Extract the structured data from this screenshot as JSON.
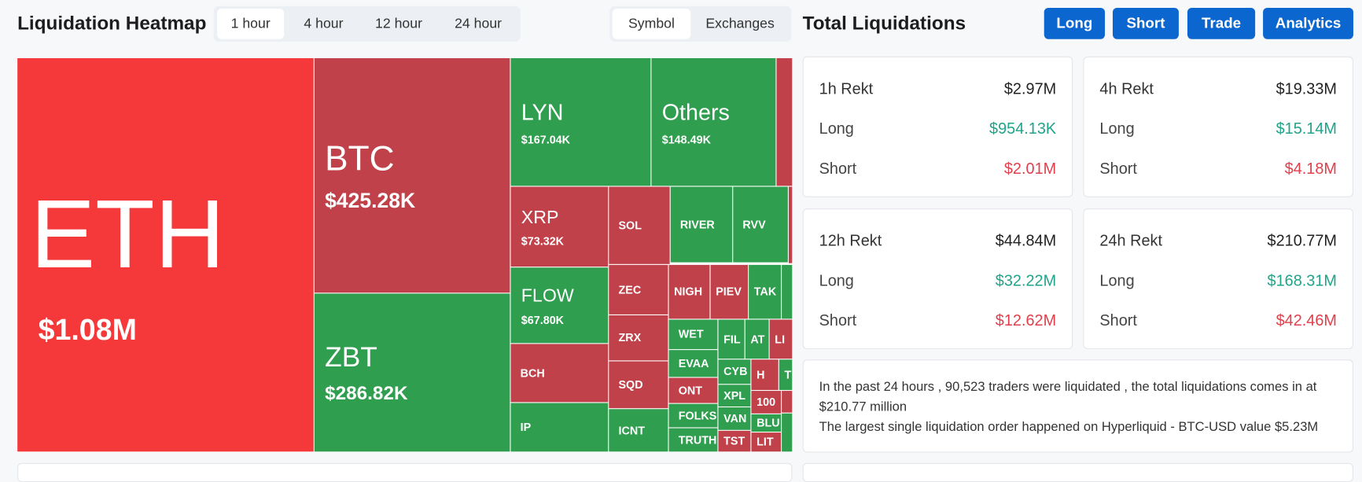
{
  "header": {
    "title": "Liquidation Heatmap",
    "time_tabs": [
      "1 hour",
      "4 hour",
      "12 hour",
      "24 hour"
    ],
    "view_tabs": [
      "Symbol",
      "Exchanges"
    ]
  },
  "heatmap": {
    "tiles": [
      {
        "label": "ETH",
        "value": "$1.08M",
        "color": "#f5393b"
      },
      {
        "label": "BTC",
        "value": "$425.28K",
        "color": "#c0414a"
      },
      {
        "label": "ZBT",
        "value": "$286.82K",
        "color": "#2f9e4e"
      },
      {
        "label": "LYN",
        "value": "$167.04K",
        "color": "#2f9e4e"
      },
      {
        "label": "Others",
        "value": "$148.49K",
        "color": "#2f9e4e"
      },
      {
        "label": "XRP",
        "value": "$73.32K",
        "color": "#c0414a"
      },
      {
        "label": "FLOW",
        "value": "$67.80K",
        "color": "#2f9e4e"
      },
      {
        "label": "BCH",
        "color": "#c0414a"
      },
      {
        "label": "IP",
        "color": "#2f9e4e"
      },
      {
        "label": "SOL",
        "color": "#c0414a"
      },
      {
        "label": "RIVER",
        "color": "#2f9e4e"
      },
      {
        "label": "RVV",
        "color": "#2f9e4e"
      },
      {
        "label": "ZEC",
        "color": "#c0414a"
      },
      {
        "label": "ZRX",
        "color": "#c0414a"
      },
      {
        "label": "SQD",
        "color": "#c0414a"
      },
      {
        "label": "ICNT",
        "color": "#2f9e4e"
      },
      {
        "label": "NIGH",
        "color": "#c0414a"
      },
      {
        "label": "PIEV",
        "color": "#c0414a"
      },
      {
        "label": "TAK",
        "color": "#2f9e4e"
      },
      {
        "label": "WET",
        "color": "#2f9e4e"
      },
      {
        "label": "EVAA",
        "color": "#2f9e4e"
      },
      {
        "label": "ONT",
        "color": "#c0414a"
      },
      {
        "label": "FOLKS",
        "color": "#2f9e4e"
      },
      {
        "label": "TRUTH",
        "color": "#2f9e4e"
      },
      {
        "label": "FIL",
        "color": "#2f9e4e"
      },
      {
        "label": "AT",
        "color": "#2f9e4e"
      },
      {
        "label": "LI",
        "color": "#c0414a"
      },
      {
        "label": "CYB",
        "color": "#2f9e4e"
      },
      {
        "label": "XPL",
        "color": "#2f9e4e"
      },
      {
        "label": "VAN",
        "color": "#2f9e4e"
      },
      {
        "label": "TST",
        "color": "#c0414a"
      },
      {
        "label": "H",
        "color": "#c0414a"
      },
      {
        "label": "T",
        "color": "#2f9e4e"
      },
      {
        "label": "100",
        "color": "#c0414a"
      },
      {
        "label": "BLU",
        "color": "#2f9e4e"
      },
      {
        "label": "LIT",
        "color": "#c0414a"
      }
    ]
  },
  "totals": {
    "title": "Total Liquidations",
    "buttons": [
      "Long",
      "Short",
      "Trade",
      "Analytics"
    ],
    "cards": [
      {
        "title": "1h Rekt",
        "total": "$2.97M",
        "rows": [
          {
            "label": "Long",
            "value": "$954.13K"
          },
          {
            "label": "Short",
            "value": "$2.01M"
          }
        ]
      },
      {
        "title": "4h Rekt",
        "total": "$19.33M",
        "rows": [
          {
            "label": "Long",
            "value": "$15.14M"
          },
          {
            "label": "Short",
            "value": "$4.18M"
          }
        ]
      },
      {
        "title": "12h Rekt",
        "total": "$44.84M",
        "rows": [
          {
            "label": "Long",
            "value": "$32.22M"
          },
          {
            "label": "Short",
            "value": "$12.62M"
          }
        ]
      },
      {
        "title": "24h Rekt",
        "total": "$210.77M",
        "rows": [
          {
            "label": "Long",
            "value": "$168.31M"
          },
          {
            "label": "Short",
            "value": "$42.46M"
          }
        ]
      }
    ],
    "summary": [
      "In the past 24 hours , 90,523 traders were liquidated , the total liquidations comes in at $210.77 million",
      "The largest single liquidation order happened on Hyperliquid - BTC-USD value $5.23M"
    ]
  }
}
